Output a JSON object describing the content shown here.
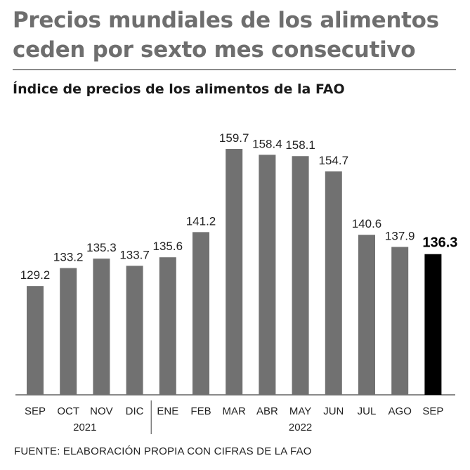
{
  "header": {
    "title_line1": "Precios mundiales de los alimentos",
    "title_line2": "ceden por sexto mes consecutivo",
    "subtitle": "Índice de precios de los alimentos de la FAO"
  },
  "source": "FUENTE: ELABORACIÓN PROPIA CON CIFRAS DE LA FAO",
  "colors": {
    "bar": "#717171",
    "highlight": "#000000",
    "axis": "#444444"
  },
  "chart_data": {
    "type": "bar",
    "title": "Índice de precios de los alimentos de la FAO",
    "categories": [
      "SEP",
      "OCT",
      "NOV",
      "DIC",
      "ENE",
      "FEB",
      "MAR",
      "ABR",
      "MAY",
      "JUN",
      "JUL",
      "AGO",
      "SEP"
    ],
    "values": [
      129.2,
      133.2,
      135.3,
      133.7,
      135.6,
      141.2,
      159.7,
      158.4,
      158.1,
      154.7,
      140.6,
      137.9,
      136.3
    ],
    "value_labels": [
      "129.2",
      "133.2",
      "135.3",
      "133.7",
      "135.6",
      "141.2",
      "159.7",
      "158.4",
      "158.1",
      "154.7",
      "140.6",
      "137.9",
      "136.3"
    ],
    "highlight_index": 12,
    "groups": [
      {
        "label": "2021",
        "start": 0,
        "end": 3
      },
      {
        "label": "2022",
        "start": 4,
        "end": 12
      }
    ],
    "ylim": [
      105,
      162
    ],
    "grid": false,
    "legend": "none"
  }
}
